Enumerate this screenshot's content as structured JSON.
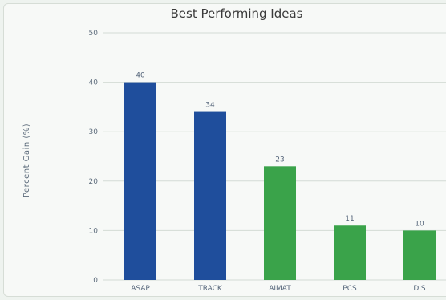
{
  "chart_data": {
    "type": "bar",
    "title": "Best Performing Ideas",
    "xlabel": "",
    "ylabel": "Percent Gain (%)",
    "ylim": [
      0,
      50
    ],
    "yticks": [
      0,
      10,
      20,
      30,
      40,
      50
    ],
    "grid": true,
    "categories": [
      "ASAP",
      "TRACK",
      "AIMAT",
      "PCS",
      "DIS"
    ],
    "values": [
      40,
      34,
      23,
      11,
      10
    ],
    "colors": [
      "#1f4e9c",
      "#1f4e9c",
      "#3aa34a",
      "#3aa34a",
      "#3aa34a"
    ]
  }
}
